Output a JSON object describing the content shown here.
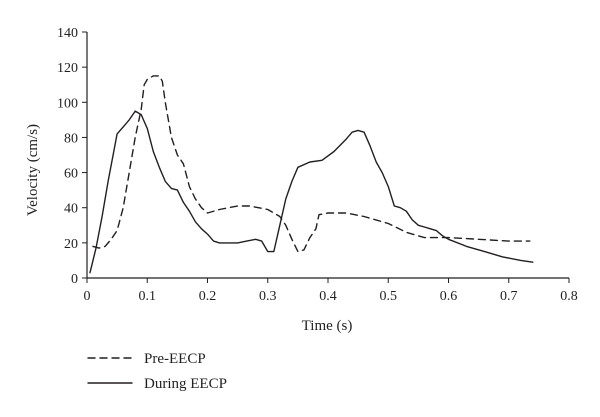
{
  "chart_data": {
    "type": "line",
    "title": "",
    "xlabel": "Time (s)",
    "ylabel": "Velocity (cm/s)",
    "xlim": [
      0,
      0.8
    ],
    "ylim": [
      0,
      140
    ],
    "x_ticks": [
      0,
      0.1,
      0.2,
      0.3,
      0.4,
      0.5,
      0.6,
      0.7,
      0.8
    ],
    "x_tick_labels": [
      "0",
      "0.1",
      "0.2",
      "0.3",
      "0.4",
      "0.5",
      "0.6",
      "0.7",
      "0.8"
    ],
    "y_ticks": [
      0,
      20,
      40,
      60,
      80,
      100,
      120,
      140
    ],
    "y_tick_labels": [
      "0",
      "20",
      "40",
      "60",
      "80",
      "100",
      "120",
      "140"
    ],
    "grid": false,
    "legend_position": "bottom-left",
    "series": [
      {
        "name": "Pre-EECP",
        "style": "dashed",
        "color": "#231f20",
        "points": [
          [
            0.01,
            18
          ],
          [
            0.02,
            17
          ],
          [
            0.03,
            18
          ],
          [
            0.04,
            22
          ],
          [
            0.05,
            27
          ],
          [
            0.06,
            40
          ],
          [
            0.07,
            60
          ],
          [
            0.08,
            80
          ],
          [
            0.09,
            96
          ],
          [
            0.095,
            110
          ],
          [
            0.1,
            113
          ],
          [
            0.11,
            115
          ],
          [
            0.12,
            115
          ],
          [
            0.125,
            112
          ],
          [
            0.13,
            100
          ],
          [
            0.14,
            80
          ],
          [
            0.15,
            70
          ],
          [
            0.16,
            65
          ],
          [
            0.17,
            52
          ],
          [
            0.18,
            45
          ],
          [
            0.19,
            40
          ],
          [
            0.2,
            37
          ],
          [
            0.22,
            39
          ],
          [
            0.25,
            41
          ],
          [
            0.27,
            41
          ],
          [
            0.3,
            39
          ],
          [
            0.32,
            35
          ],
          [
            0.33,
            30
          ],
          [
            0.34,
            22
          ],
          [
            0.35,
            15
          ],
          [
            0.36,
            16
          ],
          [
            0.37,
            23
          ],
          [
            0.38,
            28
          ],
          [
            0.385,
            36
          ],
          [
            0.4,
            37
          ],
          [
            0.43,
            37
          ],
          [
            0.46,
            35
          ],
          [
            0.5,
            31
          ],
          [
            0.53,
            26
          ],
          [
            0.56,
            23
          ],
          [
            0.6,
            23
          ],
          [
            0.65,
            22
          ],
          [
            0.7,
            21
          ],
          [
            0.735,
            21
          ]
        ]
      },
      {
        "name": "During EECP",
        "style": "solid",
        "color": "#231f20",
        "points": [
          [
            0.005,
            3
          ],
          [
            0.015,
            17
          ],
          [
            0.025,
            35
          ],
          [
            0.035,
            55
          ],
          [
            0.045,
            73
          ],
          [
            0.05,
            82
          ],
          [
            0.06,
            86
          ],
          [
            0.07,
            90
          ],
          [
            0.08,
            95
          ],
          [
            0.09,
            93
          ],
          [
            0.1,
            85
          ],
          [
            0.11,
            72
          ],
          [
            0.12,
            63
          ],
          [
            0.13,
            55
          ],
          [
            0.14,
            51
          ],
          [
            0.15,
            50
          ],
          [
            0.16,
            43
          ],
          [
            0.17,
            38
          ],
          [
            0.18,
            32
          ],
          [
            0.19,
            28
          ],
          [
            0.2,
            25
          ],
          [
            0.21,
            21
          ],
          [
            0.22,
            20
          ],
          [
            0.25,
            20
          ],
          [
            0.265,
            21
          ],
          [
            0.28,
            22
          ],
          [
            0.29,
            21
          ],
          [
            0.3,
            15
          ],
          [
            0.31,
            15
          ],
          [
            0.32,
            30
          ],
          [
            0.33,
            45
          ],
          [
            0.34,
            55
          ],
          [
            0.35,
            63
          ],
          [
            0.37,
            66
          ],
          [
            0.39,
            67
          ],
          [
            0.41,
            72
          ],
          [
            0.43,
            79
          ],
          [
            0.44,
            83
          ],
          [
            0.45,
            84
          ],
          [
            0.46,
            83
          ],
          [
            0.47,
            75
          ],
          [
            0.48,
            66
          ],
          [
            0.49,
            60
          ],
          [
            0.5,
            52
          ],
          [
            0.51,
            41
          ],
          [
            0.52,
            40
          ],
          [
            0.53,
            38
          ],
          [
            0.54,
            33
          ],
          [
            0.55,
            30
          ],
          [
            0.56,
            29
          ],
          [
            0.57,
            28
          ],
          [
            0.58,
            27
          ],
          [
            0.59,
            24
          ],
          [
            0.6,
            22
          ],
          [
            0.63,
            18
          ],
          [
            0.66,
            15
          ],
          [
            0.69,
            12
          ],
          [
            0.72,
            10
          ],
          [
            0.74,
            9
          ]
        ]
      }
    ]
  }
}
